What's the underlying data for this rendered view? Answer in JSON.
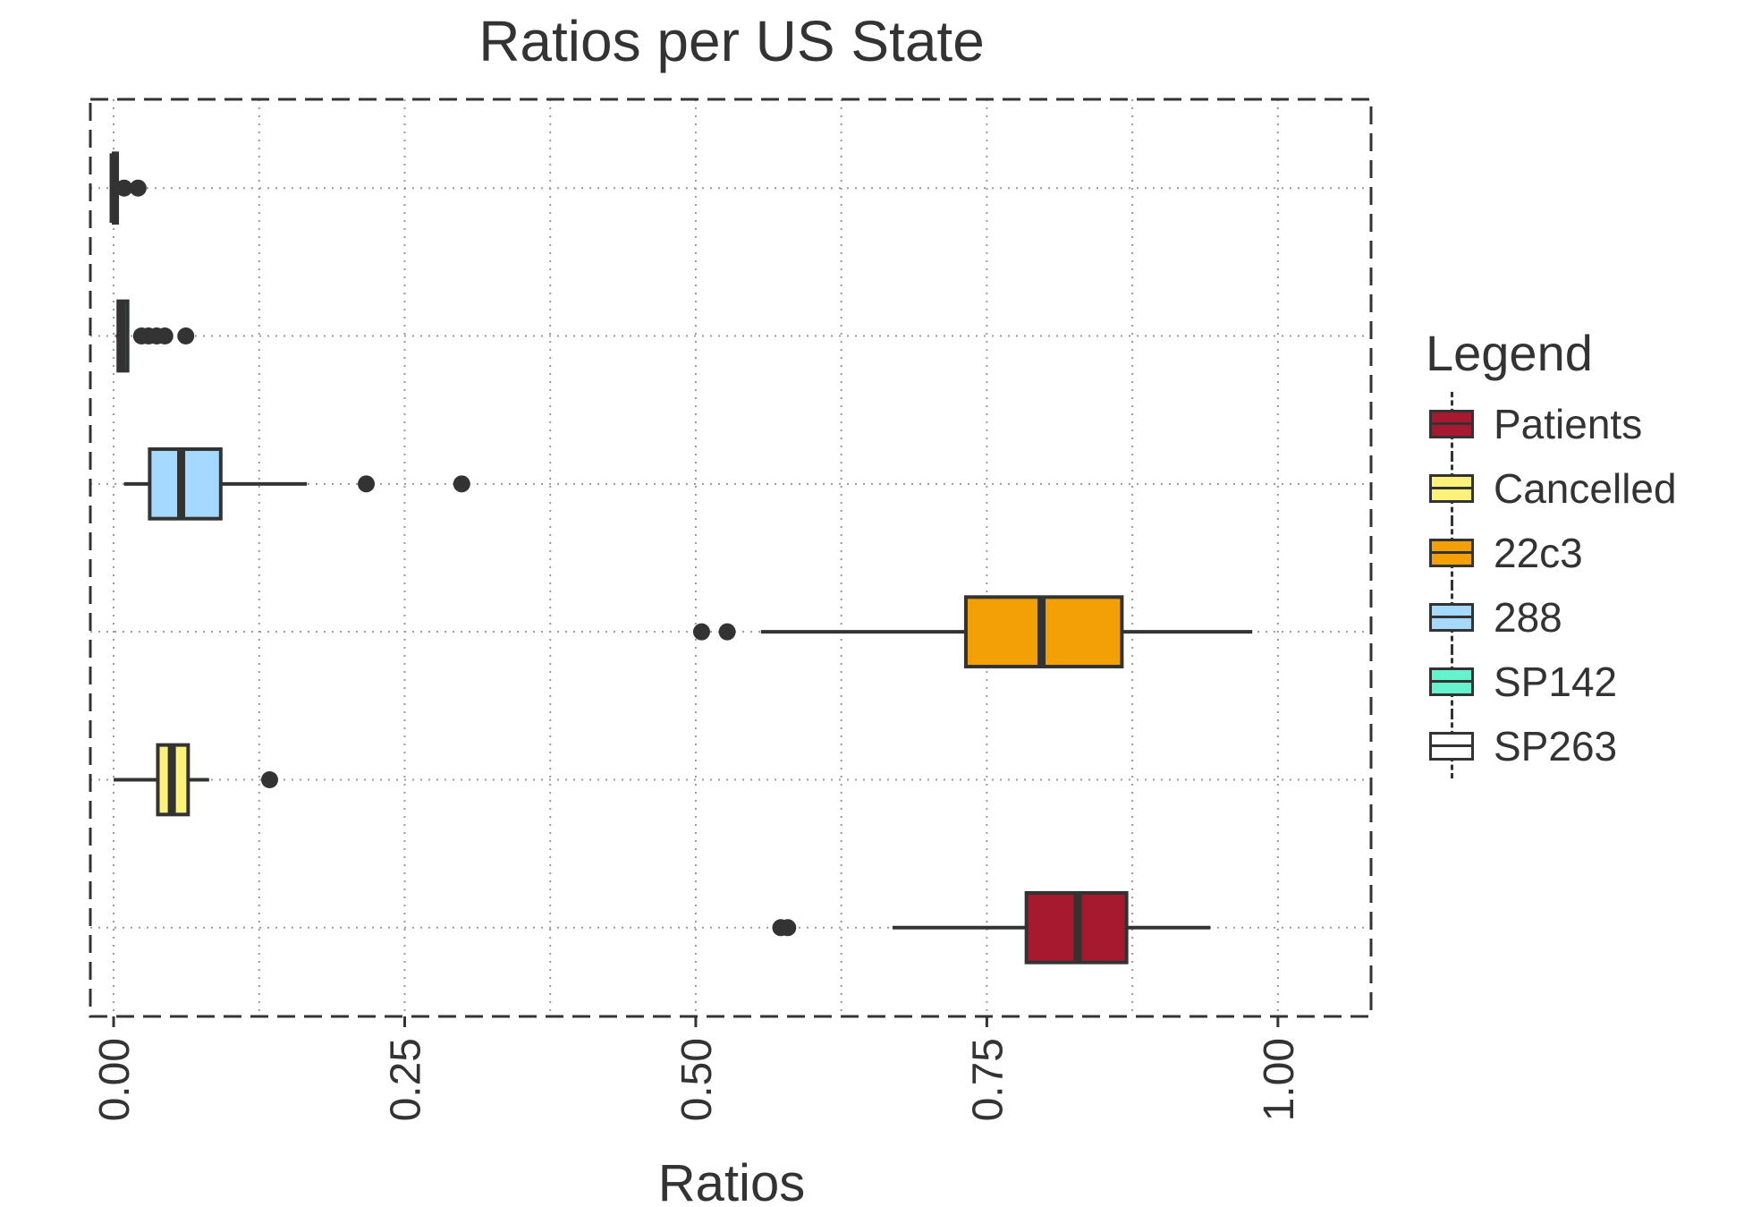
{
  "chart_data": {
    "type": "boxplot",
    "orientation": "horizontal",
    "title": "Ratios per US State",
    "xlabel": "Ratios",
    "ylabel": "",
    "xlim": [
      -0.02,
      1.08
    ],
    "x_ticks": [
      0.0,
      0.25,
      0.5,
      0.75,
      1.0
    ],
    "x_tick_labels": [
      "0.00",
      "0.25",
      "0.50",
      "0.75",
      "1.00"
    ],
    "x_minor_grid": [
      0.125,
      0.375,
      0.625,
      0.875
    ],
    "grid": "dotted",
    "legend_title": "Legend",
    "legend_position": "right",
    "series": [
      {
        "name": "SP263",
        "color": "#ffffff",
        "row": 1,
        "min": 0.0,
        "q1": 0.0,
        "median": 0.0,
        "q3": 0.002,
        "max": 0.002,
        "outliers": [
          0.009,
          0.021
        ]
      },
      {
        "name": "SP142",
        "color": "#66f2cc",
        "row": 2,
        "min": 0.002,
        "q1": 0.004,
        "median": 0.007,
        "q3": 0.012,
        "max": 0.013,
        "outliers": [
          0.024,
          0.03,
          0.037,
          0.044,
          0.062
        ]
      },
      {
        "name": "288",
        "color": "#a6d9ff",
        "row": 3,
        "min": 0.009,
        "q1": 0.031,
        "median": 0.058,
        "q3": 0.092,
        "max": 0.166,
        "outliers": [
          0.217,
          0.299
        ]
      },
      {
        "name": "22c3",
        "color": "#f2a006",
        "row": 4,
        "min": 0.556,
        "q1": 0.732,
        "median": 0.797,
        "q3": 0.866,
        "max": 0.978,
        "outliers": [
          0.505,
          0.527
        ]
      },
      {
        "name": "Cancelled",
        "color": "#fff27a",
        "row": 5,
        "min": 0.0,
        "q1": 0.038,
        "median": 0.05,
        "q3": 0.064,
        "max": 0.082,
        "outliers": [
          0.134
        ]
      },
      {
        "name": "Patients",
        "color": "#a6192e",
        "row": 6,
        "min": 0.669,
        "q1": 0.784,
        "median": 0.828,
        "q3": 0.87,
        "max": 0.942,
        "outliers": [
          0.573,
          0.579
        ]
      }
    ]
  },
  "legend": {
    "title": "Legend",
    "items": [
      {
        "label": "Patients",
        "color": "#a6192e"
      },
      {
        "label": "Cancelled",
        "color": "#fff27a"
      },
      {
        "label": "22c3",
        "color": "#f2a006"
      },
      {
        "label": "288",
        "color": "#a6d9ff"
      },
      {
        "label": "SP142",
        "color": "#66f2cc"
      },
      {
        "label": "SP263",
        "color": "#ffffff"
      }
    ]
  }
}
